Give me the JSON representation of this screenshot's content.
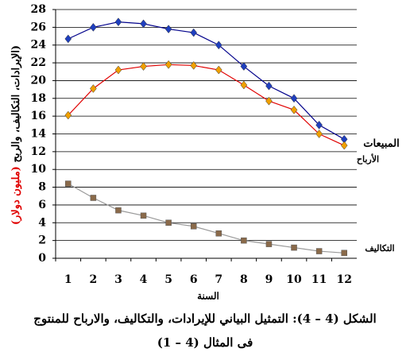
{
  "chart_data": {
    "type": "line",
    "ylabel": "(الإيرادات، التكاليف، والربح",
    "ylabel_unit": "(مليون دولار)",
    "xlabel": "السنة",
    "caption": [
      "الشكل (4 – 4):  التمثيل البياني للإيرادات، والتكاليف، والارباح للمنتوج",
      "فى المثال (4 – 1)"
    ],
    "categories": [
      "1",
      "2",
      "3",
      "4",
      "5",
      "6",
      "7",
      "8",
      "9",
      "10",
      "11",
      "12"
    ],
    "series": [
      {
        "name": "المبيعات",
        "color": "#00008b",
        "marker_color": "#1f3fbf",
        "values": [
          24.7,
          26,
          26.6,
          26.4,
          25.8,
          25.4,
          24,
          21.6,
          19.4,
          18,
          15,
          13.4
        ]
      },
      {
        "name": "الأرباح",
        "color": "#e00000",
        "marker_color": "#f0a000",
        "values": [
          16.1,
          19.1,
          21.2,
          21.6,
          21.8,
          21.7,
          21.2,
          19.5,
          17.7,
          16.7,
          14,
          12.7
        ]
      },
      {
        "name": "التكاليف",
        "color": "#999999",
        "marker_color": "#8a6a4a",
        "values": [
          8.4,
          6.8,
          5.4,
          4.8,
          4,
          3.6,
          2.8,
          2,
          1.6,
          1.2,
          0.8,
          0.6
        ]
      }
    ],
    "ylim": [
      0,
      28
    ],
    "yticks": [
      0,
      2,
      4,
      6,
      8,
      10,
      12,
      14,
      16,
      18,
      20,
      22,
      24,
      26,
      28
    ],
    "grid": true
  }
}
